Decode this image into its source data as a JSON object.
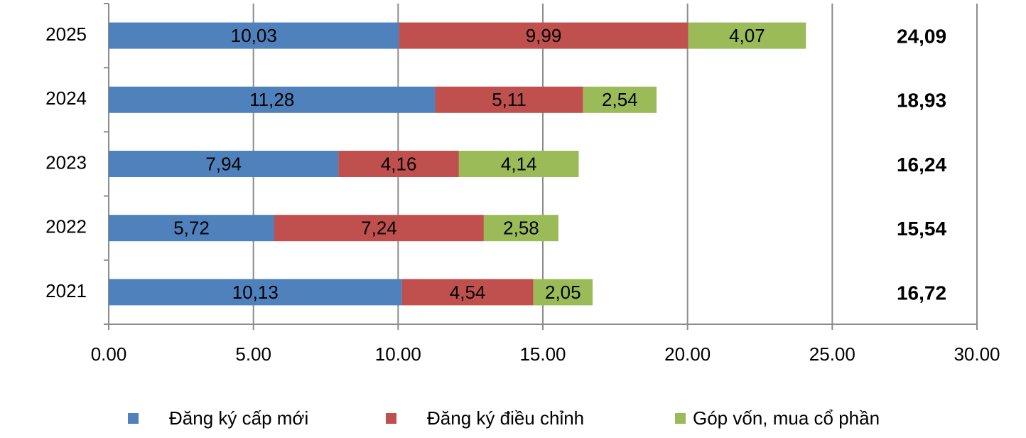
{
  "chart_data": {
    "type": "bar",
    "orientation": "horizontal",
    "stacked": true,
    "categories": [
      "2025",
      "2024",
      "2023",
      "2022",
      "2021"
    ],
    "series": [
      {
        "name": "Đăng ký cấp mới",
        "color": "#4f81bd",
        "values": [
          10.03,
          11.28,
          7.94,
          5.72,
          10.13
        ],
        "value_labels": [
          "10,03",
          "11,28",
          "7,94",
          "5,72",
          "10,13"
        ]
      },
      {
        "name": "Đăng ký điều chỉnh",
        "color": "#c0504d",
        "values": [
          9.99,
          5.11,
          4.16,
          7.24,
          4.54
        ],
        "value_labels": [
          "9,99",
          "5,11",
          "4,16",
          "7,24",
          "4,54"
        ]
      },
      {
        "name": "Góp vốn, mua cổ phần",
        "color": "#9bbb59",
        "values": [
          4.07,
          2.54,
          4.14,
          2.58,
          2.05
        ],
        "value_labels": [
          "4,07",
          "2,54",
          "4,14",
          "2,58",
          "2,05"
        ]
      }
    ],
    "totals": {
      "values": [
        24.09,
        18.93,
        16.24,
        15.54,
        16.72
      ],
      "value_labels": [
        "24,09",
        "18,93",
        "16,24",
        "15,54",
        "16,72"
      ]
    },
    "xlim": [
      0,
      30
    ],
    "xticks": [
      {
        "value": 0,
        "label": "0.00"
      },
      {
        "value": 5,
        "label": "5.00"
      },
      {
        "value": 10,
        "label": "10.00"
      },
      {
        "value": 15,
        "label": "15.00"
      },
      {
        "value": 20,
        "label": "20.00"
      },
      {
        "value": 25,
        "label": "25.00"
      },
      {
        "value": 30,
        "label": "30.00"
      }
    ],
    "grid": true,
    "legend": "bottom"
  }
}
